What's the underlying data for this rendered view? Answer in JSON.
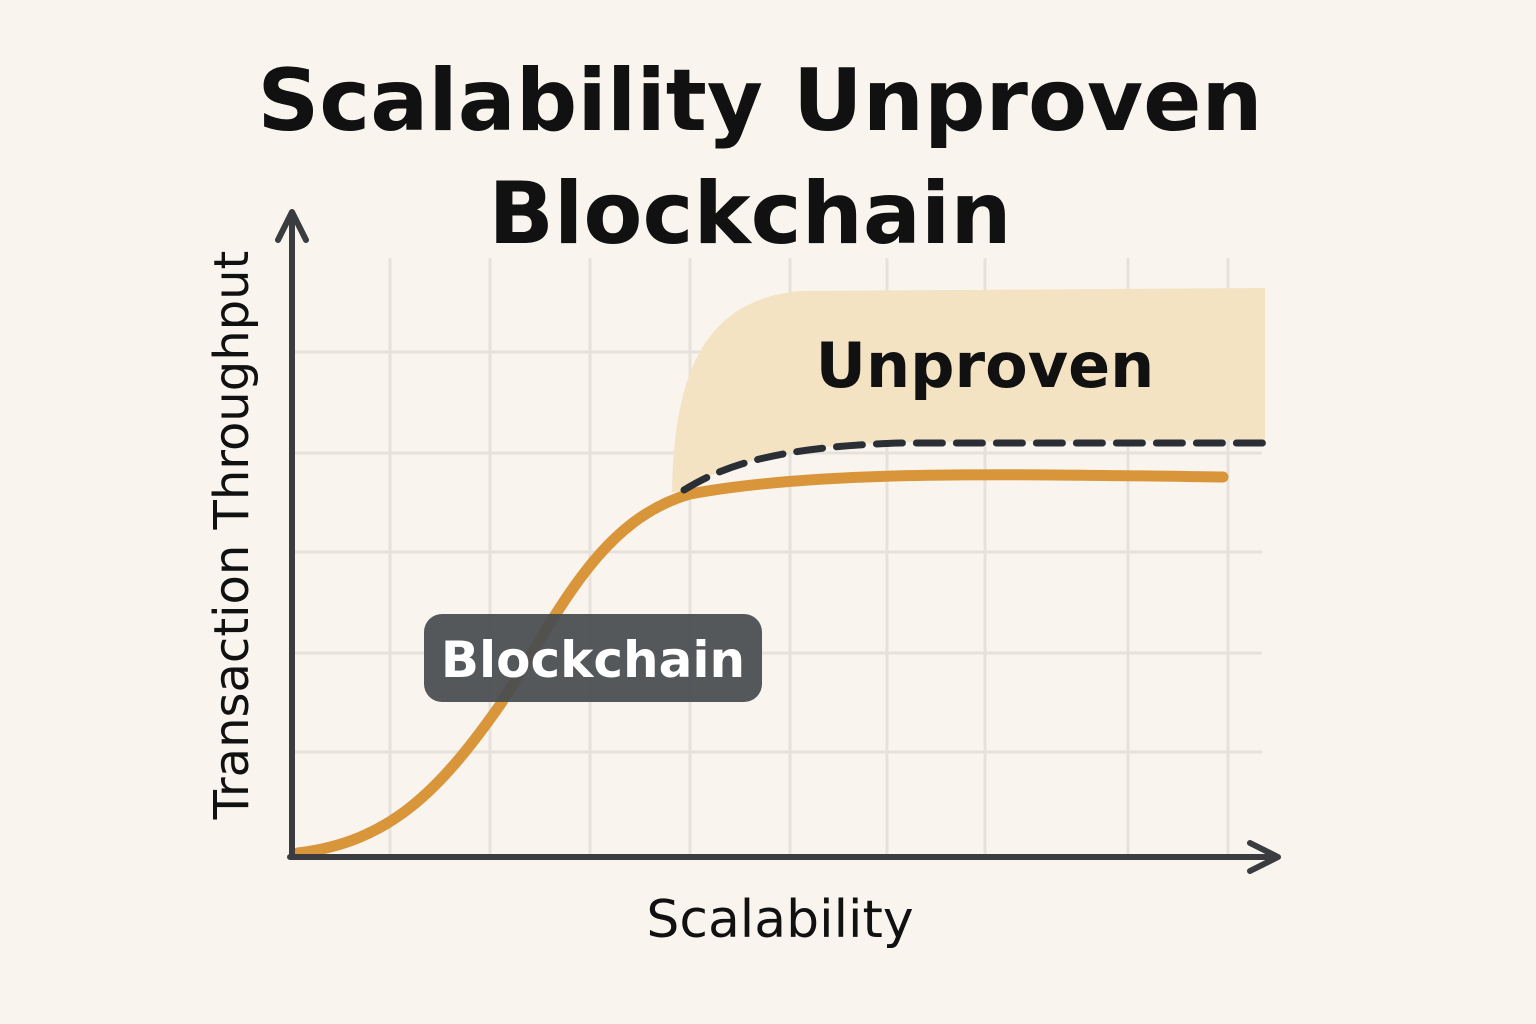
{
  "chart_data": {
    "type": "line",
    "title_lines": [
      "Scalability Unproven",
      "Blockchain"
    ],
    "xlabel": "Scalability",
    "ylabel": "Transaction Throughput",
    "grid": true,
    "axis_ticks": "none",
    "series": [
      {
        "name": "Blockchain",
        "style": "solid",
        "shape": "s-curve rising then plateauing"
      },
      {
        "style": "dashed",
        "shape": "upper bound above plateau"
      }
    ],
    "annotations": [
      {
        "text": "Unproven",
        "kind": "shaded region above the plateau"
      },
      {
        "text": "Blockchain",
        "kind": "label box on the curve"
      }
    ],
    "colors": {
      "background": "#f9f5ee",
      "grid": "#e6e1da",
      "axis": "#3a3c40",
      "curve": "#d9953a",
      "dashed": "#2a2f36",
      "region": "#f3e3c3",
      "label_box": "#474b50",
      "label_text": "#ffffff",
      "text": "#111111"
    }
  }
}
